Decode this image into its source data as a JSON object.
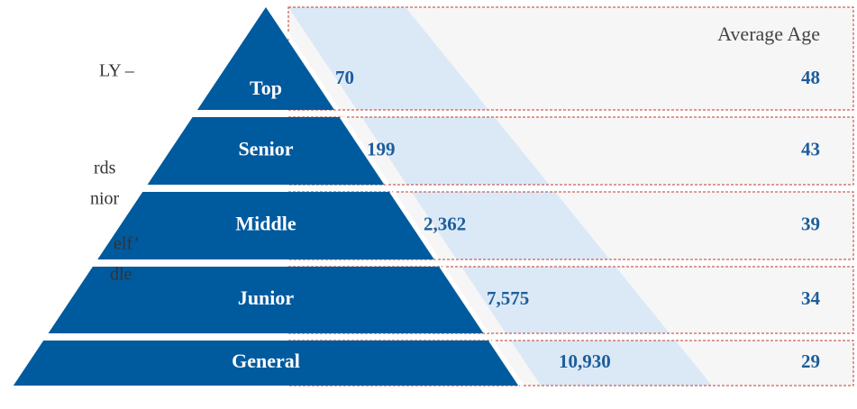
{
  "side_text": [
    "LY –",
    "rds",
    "nior",
    "elf’",
    "dle"
  ],
  "header": "Average Age",
  "rows": [
    {
      "label": "Top",
      "count": "70",
      "age": "48"
    },
    {
      "label": "Senior",
      "count": "199",
      "age": "43"
    },
    {
      "label": "Middle",
      "count": "2,362",
      "age": "39"
    },
    {
      "label": "Junior",
      "count": "7,575",
      "age": "34"
    },
    {
      "label": "General",
      "count": "10,930",
      "age": "29"
    }
  ]
}
